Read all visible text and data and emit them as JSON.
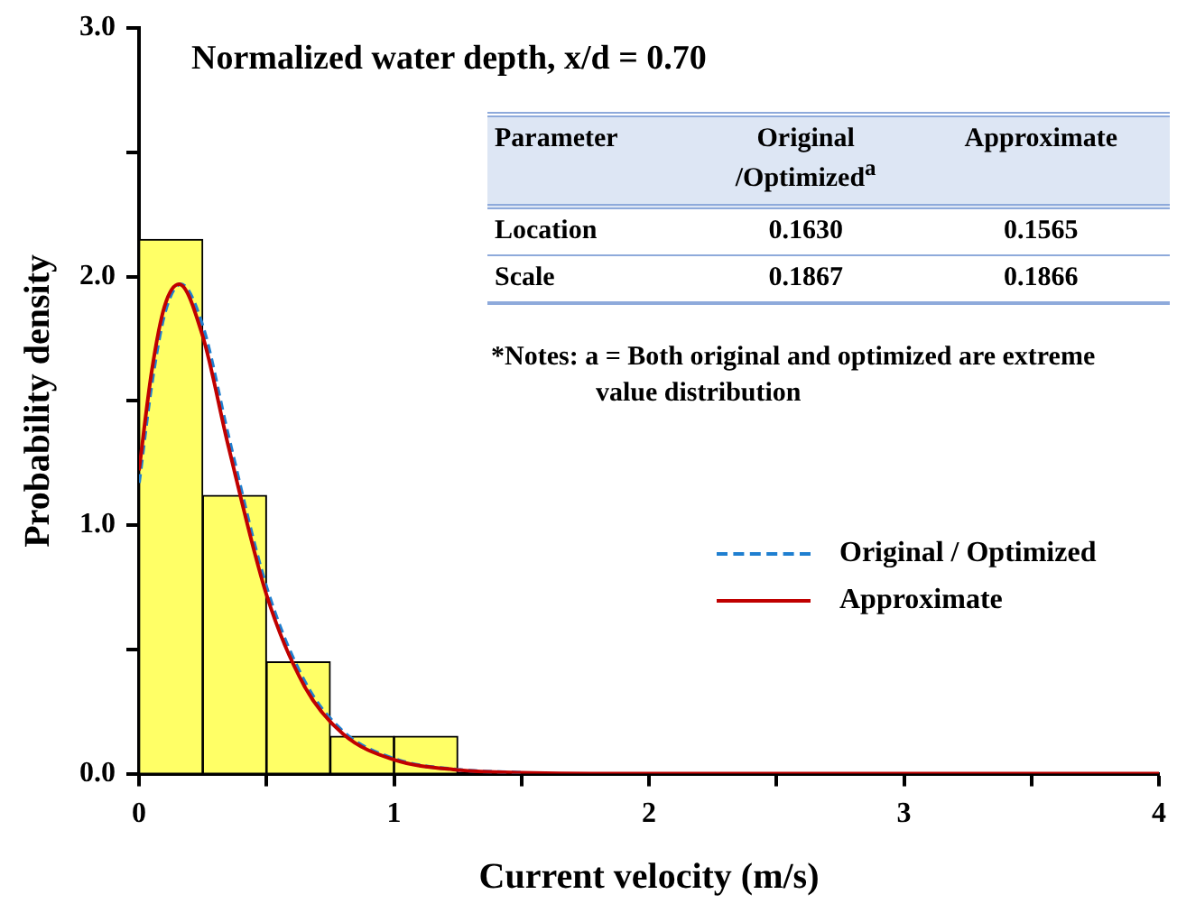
{
  "chart_data": {
    "type": "histogram",
    "title": "Normalized water depth, x/d = 0.70",
    "xlabel": "Current velocity (m/s)",
    "ylabel": "Probability density",
    "bins": [
      0,
      0.25,
      0.5,
      0.75,
      1.0,
      1.25
    ],
    "values": [
      2.15,
      1.12,
      0.45,
      0.15,
      0.15
    ],
    "color": "#ffff66",
    "series": [
      {
        "name": "Original / Optimized",
        "type": "line",
        "color": "#1f7fd0",
        "line_style": "dashed",
        "x": [
          0,
          0.05,
          0.1,
          0.163,
          0.25,
          0.35,
          0.5,
          0.65,
          0.8,
          1.0,
          1.25,
          1.5
        ],
        "values": [
          1.17,
          1.57,
          1.85,
          1.97,
          1.8,
          1.36,
          0.75,
          0.37,
          0.17,
          0.06,
          0.016,
          0.004
        ]
      },
      {
        "name": "Approximate",
        "type": "line",
        "color": "#c00000",
        "line_style": "solid",
        "x": [
          0,
          0.05,
          0.1,
          0.157,
          0.25,
          0.35,
          0.5,
          0.65,
          0.8,
          1.0,
          1.25,
          1.5,
          2.0,
          3.0,
          4.0
        ],
        "values": [
          1.22,
          1.62,
          1.88,
          1.97,
          1.76,
          1.32,
          0.72,
          0.35,
          0.16,
          0.056,
          0.015,
          0.004,
          0,
          0,
          0
        ]
      }
    ],
    "annotations": [
      "Parameter",
      "Original /Optimized$^{a}$",
      "Approximate",
      "Location",
      "0.1630",
      "0.1565",
      "Scale",
      "0.1867",
      "0.1866",
      "*Notes: a = Both original and optimized are extreme value distribution"
    ],
    "xlim": [
      0,
      4
    ],
    "xticks": [
      0,
      {
        "value": 0.5,
        "label": null
      },
      1,
      {
        "value": 1.5,
        "label": null
      },
      2,
      {
        "value": 2.5,
        "label": null
      },
      3,
      {
        "value": 3.5,
        "label": null
      },
      4
    ],
    "ylim": [
      0,
      3
    ],
    "yticks": [
      {
        "value": 0,
        "label": "0.0"
      },
      {
        "value": 0.5,
        "label": null
      },
      {
        "value": 1,
        "label": "1.0"
      },
      {
        "value": 1.5,
        "label": null
      },
      {
        "value": 2,
        "label": "2.0"
      },
      {
        "value": 2.5,
        "label": null
      },
      {
        "value": 3,
        "label": "3.0"
      }
    ],
    "grid": false,
    "legend": "right",
    "marker": "none"
  }
}
